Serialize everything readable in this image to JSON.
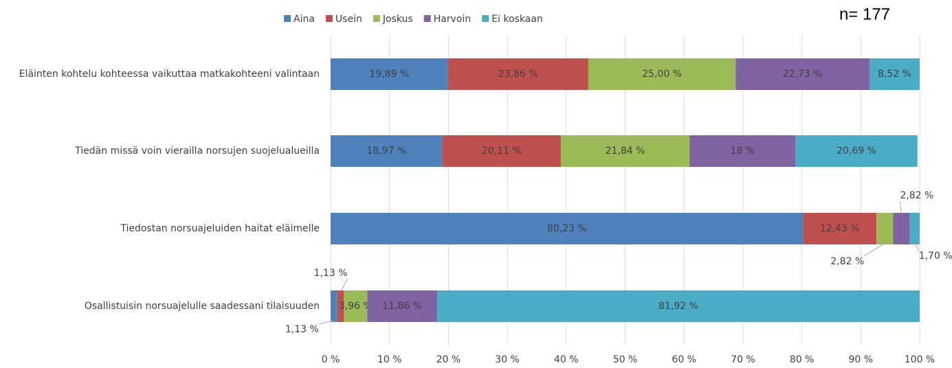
{
  "chart_data": {
    "type": "stacked_bar_horizontal",
    "annotation": "n= 177",
    "categories": [
      "Eläinten kohtelu kohteessa vaikuttaa matkakohteeni valintaan",
      "Tiedän missä voin vierailla norsujen suojelualueilla",
      "Tiedostan norsuajeluiden haitat eläimelle",
      "Osallistuisin norsuajelulle saadessani tilaisuuden"
    ],
    "series": [
      {
        "name": "Aina",
        "color": "#4f81bd",
        "values": [
          19.89,
          18.97,
          80.23,
          1.13
        ],
        "value_labels": [
          "19,89 %",
          "18,97 %",
          "80,23 %",
          "1,13 %"
        ]
      },
      {
        "name": "Usein",
        "color": "#c0504d",
        "values": [
          23.86,
          20.11,
          12.43,
          1.13
        ],
        "value_labels": [
          "23,86 %",
          "20,11 %",
          "12,43 %",
          "1,13 %"
        ]
      },
      {
        "name": "Joskus",
        "color": "#9bbb59",
        "values": [
          25.0,
          21.84,
          2.82,
          3.96
        ],
        "value_labels": [
          "25,00 %",
          "21,84 %",
          "2,82 %",
          "3,96 %"
        ]
      },
      {
        "name": "Harvoin",
        "color": "#8064a2",
        "values": [
          22.73,
          18,
          2.82,
          11.86
        ],
        "value_labels": [
          "22,73 %",
          "18 %",
          "2,82 %",
          "11,86 %"
        ]
      },
      {
        "name": "Ei koskaan",
        "color": "#4bacc6",
        "values": [
          8.52,
          20.69,
          1.7,
          81.92
        ],
        "value_labels": [
          "8,52 %",
          "20,69 %",
          "1,70 %",
          "81,92 %"
        ]
      }
    ],
    "xlim": [
      0,
      100
    ],
    "xticks": [
      {
        "value": 0,
        "label": "0 %"
      },
      {
        "value": 10,
        "label": "10 %"
      },
      {
        "value": 20,
        "label": "20 %"
      },
      {
        "value": 30,
        "label": "30 %"
      },
      {
        "value": 40,
        "label": "40 %"
      },
      {
        "value": 50,
        "label": "50 %"
      },
      {
        "value": 60,
        "label": "60 %"
      },
      {
        "value": 70,
        "label": "70 %"
      },
      {
        "value": 80,
        "label": "80 %"
      },
      {
        "value": 90,
        "label": "90 %"
      },
      {
        "value": 100,
        "label": "100 %"
      }
    ],
    "grid": true,
    "legend": "top"
  }
}
